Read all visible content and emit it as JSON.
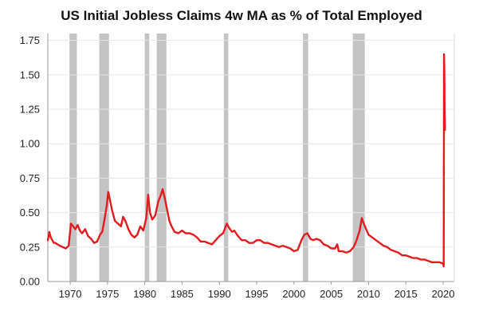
{
  "chart_data": {
    "type": "line",
    "title": "US Initial Jobless Claims 4w MA as % of Total Employed",
    "xlabel": "",
    "ylabel": "",
    "xlim": [
      1967,
      2021.5
    ],
    "ylim": [
      0,
      1.8
    ],
    "yticks": [
      0.0,
      0.25,
      0.5,
      0.75,
      1.0,
      1.25,
      1.5,
      1.75
    ],
    "ytick_labels": [
      "0.00",
      "0.25",
      "0.50",
      "0.75",
      "1.00",
      "1.25",
      "1.50",
      "1.75"
    ],
    "xticks": [
      1970,
      1975,
      1980,
      1985,
      1990,
      1995,
      2000,
      2005,
      2010,
      2015,
      2020
    ],
    "xtick_labels": [
      "1970",
      "1975",
      "1980",
      "1985",
      "1990",
      "1995",
      "2000",
      "2005",
      "2010",
      "2015",
      "2020"
    ],
    "grid": "horizontal",
    "colors": {
      "line": "#e41a1c",
      "recession": "#c4c4c4",
      "grid": "#e6e6e6",
      "axis": "#999999"
    },
    "recession_shading": [
      [
        1969.9,
        1970.9
      ],
      [
        1973.9,
        1975.2
      ],
      [
        1980.0,
        1980.6
      ],
      [
        1981.6,
        1982.9
      ],
      [
        1990.6,
        1991.2
      ],
      [
        2001.2,
        2001.9
      ],
      [
        2007.9,
        2009.5
      ]
    ],
    "series": [
      {
        "x": [
          1967.0,
          1967.2,
          1967.4,
          1967.6,
          1967.8,
          1968.0,
          1968.3,
          1968.6,
          1969.0,
          1969.4,
          1969.8,
          1970.1,
          1970.4,
          1970.7,
          1971.0,
          1971.3,
          1971.6,
          1972.0,
          1972.4,
          1972.8,
          1973.2,
          1973.6,
          1974.0,
          1974.3,
          1974.6,
          1974.9,
          1975.1,
          1975.3,
          1975.6,
          1976.0,
          1976.4,
          1976.8,
          1977.1,
          1977.4,
          1977.8,
          1978.2,
          1978.6,
          1979.0,
          1979.4,
          1979.8,
          1980.2,
          1980.45,
          1980.7,
          1981.0,
          1981.4,
          1981.8,
          1982.1,
          1982.4,
          1982.7,
          1983.0,
          1983.3,
          1983.6,
          1984.0,
          1984.5,
          1985.0,
          1985.5,
          1986.0,
          1986.5,
          1987.0,
          1987.5,
          1988.0,
          1988.5,
          1989.0,
          1989.5,
          1990.0,
          1990.5,
          1991.0,
          1991.3,
          1991.7,
          1992.0,
          1992.5,
          1993.0,
          1993.5,
          1994.0,
          1994.5,
          1995.0,
          1995.5,
          1996.0,
          1996.5,
          1997.0,
          1997.5,
          1998.0,
          1998.5,
          1999.0,
          1999.5,
          2000.0,
          2000.5,
          2001.0,
          2001.4,
          2001.8,
          2002.2,
          2002.6,
          2003.0,
          2003.5,
          2004.0,
          2004.5,
          2005.0,
          2005.5,
          2005.8,
          2006.0,
          2006.5,
          2007.0,
          2007.5,
          2008.0,
          2008.4,
          2008.8,
          2009.1,
          2009.3,
          2009.6,
          2010.0,
          2010.5,
          2011.0,
          2011.5,
          2012.0,
          2012.5,
          2013.0,
          2013.5,
          2014.0,
          2014.5,
          2015.0,
          2015.5,
          2016.0,
          2016.5,
          2017.0,
          2017.5,
          2018.0,
          2018.5,
          2019.0,
          2019.5,
          2020.0,
          2020.08,
          2020.12,
          2020.17,
          2020.2,
          2020.25
        ],
        "y": [
          0.3,
          0.36,
          0.32,
          0.3,
          0.28,
          0.28,
          0.27,
          0.26,
          0.25,
          0.24,
          0.26,
          0.42,
          0.4,
          0.38,
          0.41,
          0.37,
          0.35,
          0.38,
          0.33,
          0.31,
          0.28,
          0.29,
          0.34,
          0.36,
          0.45,
          0.55,
          0.65,
          0.6,
          0.52,
          0.44,
          0.42,
          0.4,
          0.47,
          0.44,
          0.38,
          0.34,
          0.32,
          0.34,
          0.4,
          0.37,
          0.46,
          0.63,
          0.5,
          0.45,
          0.48,
          0.58,
          0.62,
          0.67,
          0.6,
          0.52,
          0.44,
          0.4,
          0.36,
          0.35,
          0.37,
          0.35,
          0.35,
          0.34,
          0.32,
          0.29,
          0.29,
          0.28,
          0.27,
          0.3,
          0.33,
          0.35,
          0.42,
          0.39,
          0.36,
          0.37,
          0.33,
          0.3,
          0.3,
          0.28,
          0.28,
          0.3,
          0.3,
          0.28,
          0.28,
          0.27,
          0.26,
          0.25,
          0.26,
          0.25,
          0.24,
          0.22,
          0.23,
          0.3,
          0.34,
          0.35,
          0.31,
          0.3,
          0.31,
          0.3,
          0.27,
          0.26,
          0.24,
          0.24,
          0.27,
          0.22,
          0.22,
          0.21,
          0.22,
          0.25,
          0.3,
          0.37,
          0.46,
          0.43,
          0.39,
          0.34,
          0.32,
          0.3,
          0.28,
          0.26,
          0.25,
          0.23,
          0.22,
          0.21,
          0.19,
          0.19,
          0.18,
          0.17,
          0.17,
          0.16,
          0.16,
          0.15,
          0.14,
          0.14,
          0.14,
          0.13,
          0.11,
          1.65,
          1.5,
          1.25,
          1.1
        ]
      }
    ]
  }
}
